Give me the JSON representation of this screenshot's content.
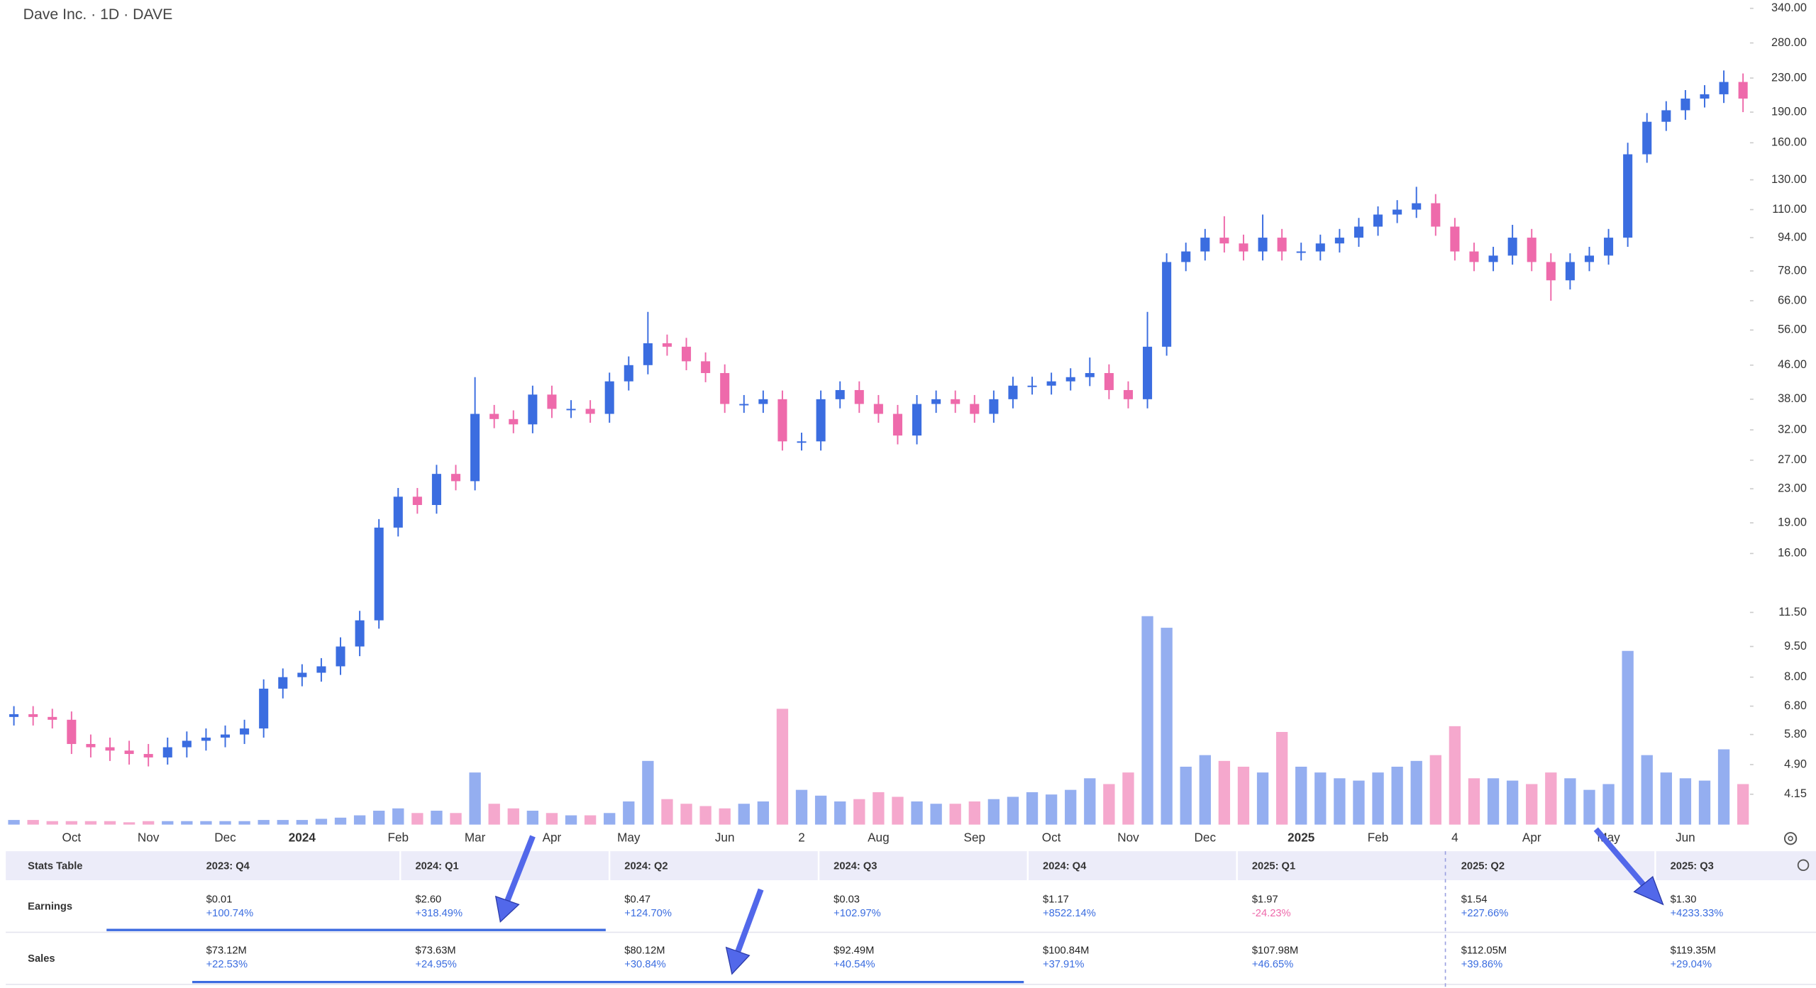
{
  "chart_data": {
    "type": "candlestick",
    "title": "Dave Inc. · 1D · DAVE",
    "categories": [
      null,
      null,
      null,
      "Oct",
      null,
      null,
      null,
      "Nov",
      null,
      null,
      null,
      "Dec",
      null,
      null,
      null,
      "2024",
      null,
      null,
      null,
      null,
      "Feb",
      null,
      null,
      null,
      "Mar",
      null,
      null,
      null,
      "Apr",
      null,
      null,
      null,
      "May",
      null,
      null,
      null,
      null,
      "Jun",
      null,
      null,
      null,
      "2",
      null,
      null,
      null,
      "Aug",
      null,
      null,
      null,
      null,
      "Sep",
      null,
      null,
      null,
      "Oct",
      null,
      null,
      null,
      "Nov",
      null,
      null,
      null,
      "Dec",
      null,
      null,
      null,
      null,
      "2025",
      null,
      null,
      null,
      "Feb",
      null,
      null,
      null,
      "4",
      null,
      null,
      null,
      "Apr",
      null,
      null,
      null,
      "May",
      null,
      null,
      null,
      "Jun",
      null,
      null,
      null
    ],
    "open": [
      6.4,
      6.5,
      6.4,
      6.3,
      5.5,
      5.4,
      5.3,
      5.2,
      5.1,
      5.4,
      5.6,
      5.7,
      5.8,
      6.0,
      7.5,
      8.0,
      8.2,
      8.5,
      9.5,
      11,
      18.5,
      22,
      21,
      25,
      24,
      35,
      34,
      33,
      39,
      36,
      36,
      35,
      42,
      46,
      52,
      51,
      47,
      44,
      37,
      37,
      38,
      30,
      30,
      38,
      40,
      37,
      35,
      31,
      37,
      38,
      37,
      35,
      38,
      41,
      41,
      42,
      43,
      44,
      40,
      38,
      51,
      82,
      87,
      94,
      91,
      87,
      94,
      87,
      87,
      91,
      94,
      100,
      107,
      110,
      114,
      100,
      87,
      82,
      85,
      94,
      82,
      74,
      82,
      85,
      94,
      150,
      180,
      192,
      205,
      210,
      225
    ],
    "high": [
      6.8,
      6.8,
      6.7,
      6.6,
      5.8,
      5.7,
      5.6,
      5.5,
      5.7,
      5.9,
      6.0,
      6.1,
      6.3,
      7.9,
      8.4,
      8.6,
      8.9,
      10.0,
      11.6,
      19.4,
      23.1,
      23.1,
      26.3,
      26.3,
      43,
      36.8,
      35.7,
      41,
      41,
      37.8,
      37.8,
      44.1,
      48.3,
      62,
      54.6,
      53.6,
      49.4,
      46.2,
      38.9,
      39.9,
      39.9,
      31.5,
      39.9,
      42,
      42,
      38.9,
      36.8,
      38.9,
      39.9,
      39.9,
      38.9,
      39.9,
      43.1,
      43.1,
      44.1,
      45.2,
      48,
      46.2,
      42,
      62,
      86.1,
      91.4,
      98.7,
      106,
      95.6,
      107,
      98.7,
      91.4,
      95.6,
      98.7,
      105,
      112,
      116,
      125,
      120,
      105,
      91.4,
      89.3,
      101,
      98.7,
      86.1,
      86.1,
      89.3,
      98.7,
      160,
      189,
      202,
      215,
      221,
      240,
      236
    ],
    "low": [
      6.1,
      6.1,
      6.0,
      5.2,
      5.1,
      5.0,
      4.9,
      4.85,
      4.9,
      5.1,
      5.3,
      5.4,
      5.5,
      5.7,
      7.1,
      7.6,
      7.8,
      8.1,
      9.0,
      10.5,
      17.6,
      20.0,
      20.0,
      22.8,
      22.8,
      32.3,
      31.4,
      31.4,
      34.2,
      34.2,
      33.3,
      33.3,
      39.9,
      43.7,
      48.5,
      44.7,
      41.8,
      35.2,
      35.2,
      35.2,
      28.5,
      28.5,
      28.5,
      36.1,
      35.2,
      33.3,
      29.5,
      29.5,
      35.2,
      35.2,
      33.3,
      33.3,
      36.1,
      39.0,
      39.0,
      39.9,
      40.9,
      38.0,
      36.1,
      36.1,
      48.5,
      77.9,
      82.7,
      86.5,
      82.7,
      82.7,
      82.7,
      82.7,
      82.7,
      86.5,
      89.3,
      95,
      102,
      105,
      95,
      82.7,
      77.9,
      77.9,
      80.8,
      77.9,
      66,
      70.3,
      77.9,
      80.8,
      89.3,
      143,
      171,
      182,
      195,
      200,
      190
    ],
    "close": [
      6.5,
      6.4,
      6.3,
      5.5,
      5.4,
      5.3,
      5.2,
      5.1,
      5.4,
      5.6,
      5.7,
      5.8,
      6.0,
      7.5,
      8.0,
      8.2,
      8.5,
      9.5,
      11,
      18.5,
      22,
      21,
      25,
      24,
      35,
      34,
      33,
      39,
      36,
      36,
      35,
      42,
      46,
      52,
      51,
      47,
      44,
      37,
      37,
      38,
      30,
      30,
      38,
      40,
      37,
      35,
      31,
      37,
      38,
      37,
      35,
      38,
      41,
      41,
      42,
      43,
      44,
      40,
      38,
      51,
      82,
      87,
      94,
      91,
      87,
      94,
      87,
      87,
      91,
      94,
      100,
      107,
      110,
      114,
      100,
      87,
      82,
      85,
      94,
      82,
      74,
      82,
      85,
      94,
      150,
      180,
      192,
      205,
      210,
      225,
      205
    ],
    "volume": [
      4,
      4,
      3,
      3,
      3,
      3,
      2,
      3,
      3,
      3,
      3,
      3,
      3,
      4,
      4,
      4,
      5,
      6,
      8,
      12,
      14,
      10,
      12,
      10,
      45,
      18,
      14,
      12,
      10,
      8,
      8,
      10,
      20,
      55,
      22,
      18,
      16,
      14,
      18,
      20,
      100,
      30,
      25,
      20,
      22,
      28,
      24,
      20,
      18,
      18,
      20,
      22,
      24,
      28,
      26,
      30,
      40,
      35,
      45,
      180,
      170,
      50,
      60,
      55,
      50,
      45,
      80,
      50,
      45,
      40,
      38,
      45,
      50,
      55,
      60,
      85,
      40,
      40,
      38,
      35,
      45,
      40,
      30,
      35,
      150,
      60,
      45,
      40,
      38,
      65,
      35
    ],
    "colors": {
      "up": "#3b6de0",
      "down": "#ee6aab",
      "volume_up": "#94aef0",
      "volume_down": "#f5a8cd"
    },
    "log_scale": true,
    "grid": false,
    "ylim": [
      3.5,
      356
    ],
    "yticks": [
      {
        "value": 340,
        "label": "340.00"
      },
      {
        "value": 280,
        "label": "280.00"
      },
      {
        "value": 230,
        "label": "230.00"
      },
      {
        "value": 190,
        "label": "190.00"
      },
      {
        "value": 160,
        "label": "160.00"
      },
      {
        "value": 130,
        "label": "130.00"
      },
      {
        "value": 110,
        "label": "110.00"
      },
      {
        "value": 94,
        "label": "94.00"
      },
      {
        "value": 78,
        "label": "78.00"
      },
      {
        "value": 66,
        "label": "66.00"
      },
      {
        "value": 56,
        "label": "56.00"
      },
      {
        "value": 46,
        "label": "46.00"
      },
      {
        "value": 38,
        "label": "38.00"
      },
      {
        "value": 32,
        "label": "32.00"
      },
      {
        "value": 27,
        "label": "27.00"
      },
      {
        "value": 23,
        "label": "23.00"
      },
      {
        "value": 19,
        "label": "19.00"
      },
      {
        "value": 16,
        "label": "16.00"
      },
      {
        "value": 11.5,
        "label": "11.50"
      },
      {
        "value": 9.5,
        "label": "9.50"
      },
      {
        "value": 8,
        "label": "8.00"
      },
      {
        "value": 6.8,
        "label": "6.80"
      },
      {
        "value": 5.8,
        "label": "5.80"
      },
      {
        "value": 4.9,
        "label": "4.90"
      },
      {
        "value": 4.15,
        "label": "4.15"
      }
    ]
  },
  "stats_table": {
    "title": "Stats Table",
    "row_labels": [
      "Earnings",
      "Sales"
    ],
    "columns": [
      {
        "quarter": "2023: Q4",
        "earnings": "$0.01",
        "earnings_change": "+100.74%",
        "sales": "$73.12M",
        "sales_change": "+22.53%"
      },
      {
        "quarter": "2024: Q1",
        "earnings": "$2.60",
        "earnings_change": "+318.49%",
        "sales": "$73.63M",
        "sales_change": "+24.95%"
      },
      {
        "quarter": "2024: Q2",
        "earnings": "$0.47",
        "earnings_change": "+124.70%",
        "sales": "$80.12M",
        "sales_change": "+30.84%"
      },
      {
        "quarter": "2024: Q3",
        "earnings": "$0.03",
        "earnings_change": "+102.97%",
        "sales": "$92.49M",
        "sales_change": "+40.54%"
      },
      {
        "quarter": "2024: Q4",
        "earnings": "$1.17",
        "earnings_change": "+8522.14%",
        "sales": "$100.84M",
        "sales_change": "+37.91%"
      },
      {
        "quarter": "2025: Q1",
        "earnings": "$1.97",
        "earnings_change": "-24.23%",
        "sales": "$107.98M",
        "sales_change": "+46.65%"
      },
      {
        "quarter": "2025: Q2",
        "earnings": "$1.54",
        "earnings_change": "+227.66%",
        "sales": "$112.05M",
        "sales_change": "+39.86%"
      },
      {
        "quarter": "2025: Q3",
        "earnings": "$1.30",
        "earnings_change": "+4233.33%",
        "sales": "$119.35M",
        "sales_change": "+29.04%"
      }
    ]
  }
}
